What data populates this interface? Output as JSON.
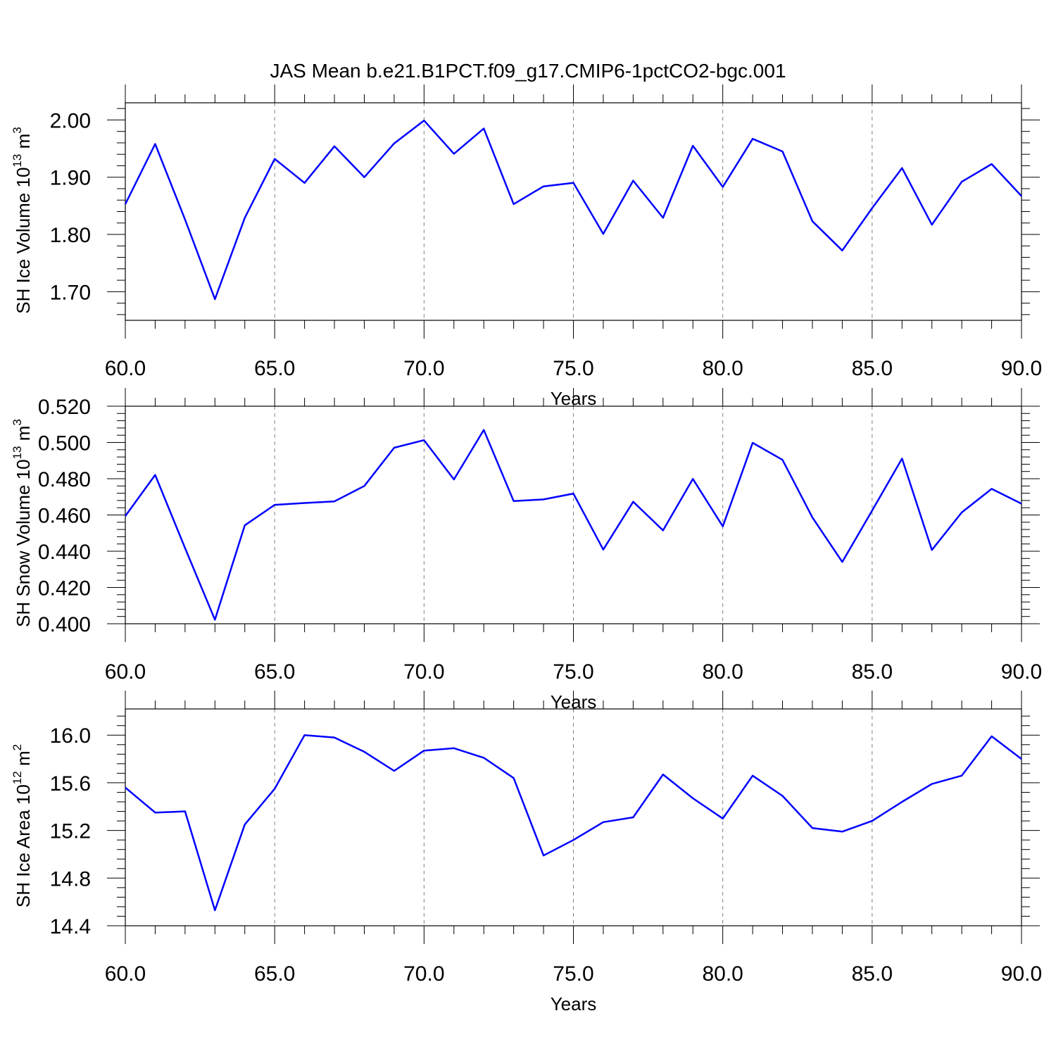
{
  "title": "JAS Mean b.e21.B1PCT.f09_g17.CMIP6-1pctCO2-bgc.001",
  "colors": {
    "line": "#0000ff",
    "grid": "#808080"
  },
  "chart_data": [
    {
      "type": "line",
      "title": "JAS Mean b.e21.B1PCT.f09_g17.CMIP6-1pctCO2-bgc.001",
      "xlabel": "Years",
      "ylabel": {
        "base": "SH Ice Volume 10",
        "sup1": "13",
        "mid": " m",
        "sup2": "3"
      },
      "xlim": [
        60,
        90
      ],
      "ylim": [
        1.65,
        2.03
      ],
      "xticks": [
        60,
        65,
        70,
        75,
        80,
        85,
        90
      ],
      "xtick_labels": [
        "60.0",
        "65.0",
        "70.0",
        "75.0",
        "80.0",
        "85.0",
        "90.0"
      ],
      "yticks": [
        1.7,
        1.8,
        1.9,
        2.0
      ],
      "ytick_labels": [
        "1.70",
        "1.80",
        "1.90",
        "2.00"
      ],
      "grid": "vertical dashed at major x ticks",
      "x": [
        60,
        61,
        62,
        63,
        64,
        65,
        66,
        67,
        68,
        69,
        70,
        71,
        72,
        73,
        74,
        75,
        76,
        77,
        78,
        79,
        80,
        81,
        82,
        83,
        84,
        85,
        86,
        87,
        88,
        89,
        90
      ],
      "series": [
        {
          "values": [
            1.853,
            1.958,
            1.826,
            1.687,
            1.829,
            1.932,
            1.89,
            1.954,
            1.9,
            1.959,
            1.999,
            1.941,
            1.985,
            1.853,
            1.884,
            1.89,
            1.801,
            1.894,
            1.829,
            1.955,
            1.883,
            1.967,
            1.945,
            1.823,
            1.772,
            1.846,
            1.916,
            1.817,
            1.892,
            1.923,
            1.867
          ]
        }
      ]
    },
    {
      "type": "line",
      "xlabel": "Years",
      "ylabel": {
        "base": "SH Snow Volume 10",
        "sup1": "13",
        "mid": " m",
        "sup2": "3"
      },
      "xlim": [
        60,
        90
      ],
      "ylim": [
        0.4,
        0.52
      ],
      "xticks": [
        60,
        65,
        70,
        75,
        80,
        85,
        90
      ],
      "xtick_labels": [
        "60.0",
        "65.0",
        "70.0",
        "75.0",
        "80.0",
        "85.0",
        "90.0"
      ],
      "yticks": [
        0.4,
        0.42,
        0.44,
        0.46,
        0.48,
        0.5,
        0.52
      ],
      "ytick_labels": [
        "0.400",
        "0.420",
        "0.440",
        "0.460",
        "0.480",
        "0.500",
        "0.520"
      ],
      "grid": "vertical dashed at major x ticks",
      "x": [
        60,
        61,
        62,
        63,
        64,
        65,
        66,
        67,
        68,
        69,
        70,
        71,
        72,
        73,
        74,
        75,
        76,
        77,
        78,
        79,
        80,
        81,
        82,
        83,
        84,
        85,
        86,
        87,
        88,
        89,
        90
      ],
      "series": [
        {
          "values": [
            0.4594,
            0.4821,
            0.4417,
            0.4022,
            0.4543,
            0.4656,
            0.4666,
            0.4675,
            0.476,
            0.4971,
            0.5013,
            0.4796,
            0.5069,
            0.4677,
            0.4686,
            0.4718,
            0.4409,
            0.4673,
            0.4515,
            0.4799,
            0.4537,
            0.4998,
            0.4904,
            0.4586,
            0.4341,
            0.4624,
            0.4911,
            0.4407,
            0.4614,
            0.4744,
            0.4662
          ]
        }
      ]
    },
    {
      "type": "line",
      "xlabel": "Years",
      "ylabel": {
        "base": "SH Ice Area 10",
        "sup1": "12",
        "mid": " m",
        "sup2": "2"
      },
      "xlim": [
        60,
        90
      ],
      "ylim": [
        14.4,
        16.22
      ],
      "xticks": [
        60,
        65,
        70,
        75,
        80,
        85,
        90
      ],
      "xtick_labels": [
        "60.0",
        "65.0",
        "70.0",
        "75.0",
        "80.0",
        "85.0",
        "90.0"
      ],
      "yticks": [
        14.4,
        14.8,
        15.2,
        15.6,
        16.0
      ],
      "ytick_labels": [
        "14.4",
        "14.8",
        "15.2",
        "15.6",
        "16.0"
      ],
      "grid": "vertical dashed at major x ticks",
      "x": [
        60,
        61,
        62,
        63,
        64,
        65,
        66,
        67,
        68,
        69,
        70,
        71,
        72,
        73,
        74,
        75,
        76,
        77,
        78,
        79,
        80,
        81,
        82,
        83,
        84,
        85,
        86,
        87,
        88,
        89,
        90
      ],
      "series": [
        {
          "values": [
            15.56,
            15.35,
            15.36,
            14.53,
            15.25,
            15.55,
            16.0,
            15.98,
            15.86,
            15.7,
            15.87,
            15.89,
            15.81,
            15.64,
            14.99,
            15.12,
            15.27,
            15.31,
            15.67,
            15.47,
            15.3,
            15.66,
            15.49,
            15.22,
            15.19,
            15.28,
            15.44,
            15.59,
            15.66,
            15.99,
            15.8
          ]
        }
      ]
    }
  ]
}
